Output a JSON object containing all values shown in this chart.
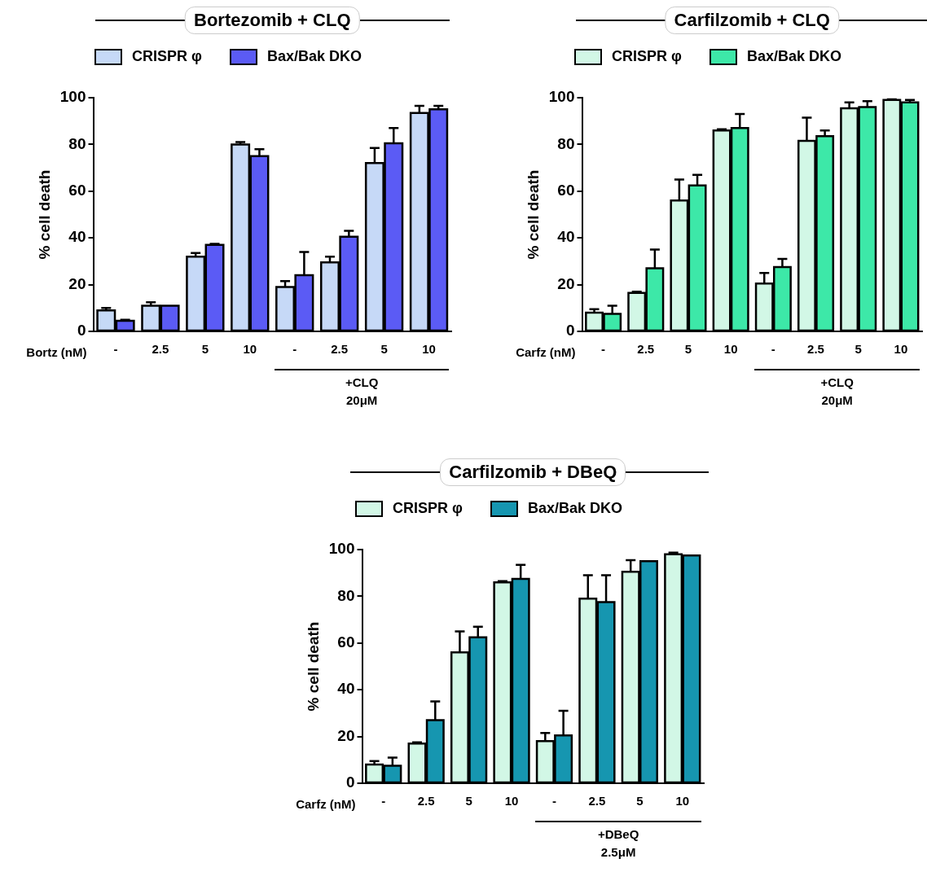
{
  "chart_data": [
    {
      "type": "bar",
      "title": "Bortezomib + CLQ",
      "xlabel": "Bortz (nM)",
      "ylabel": "% cell death",
      "categories": [
        "-",
        "2.5",
        "5",
        "10",
        "-",
        "2.5",
        "5",
        "10"
      ],
      "series": [
        {
          "name": "CRISPR φ",
          "color": "#c6d9f7",
          "values": [
            9,
            11,
            32,
            80,
            19,
            29.5,
            72,
            93.5
          ],
          "errors": [
            1,
            1.5,
            1.5,
            1,
            2.5,
            2.5,
            6.5,
            3
          ]
        },
        {
          "name": "Bax/Bak DKO",
          "color": "#5b5bf5",
          "values": [
            4.5,
            11,
            37,
            75,
            24,
            40.5,
            80.5,
            95
          ],
          "errors": [
            0.5,
            null,
            0.5,
            3,
            10,
            2.5,
            6.5,
            1.5
          ]
        }
      ],
      "ylim": [
        0,
        100
      ],
      "yticks": [
        0,
        20,
        40,
        60,
        80,
        100
      ],
      "legend": "top",
      "annotations": [
        "+CLQ",
        "20μM"
      ]
    },
    {
      "type": "bar",
      "title": "Carfilzomib + CLQ",
      "xlabel": "Carfz (nM)",
      "ylabel": "% cell death",
      "categories": [
        "-",
        "2.5",
        "5",
        "10",
        "-",
        "2.5",
        "5",
        "10"
      ],
      "series": [
        {
          "name": "CRISPR φ",
          "color": "#d2f7e6",
          "values": [
            8,
            16.5,
            56,
            86,
            20.5,
            81.5,
            95.5,
            99
          ],
          "errors": [
            1.5,
            0.5,
            9,
            0.5,
            4.5,
            10,
            2.5,
            0.3
          ]
        },
        {
          "name": "Bax/Bak DKO",
          "color": "#3de8a8",
          "values": [
            7.5,
            27,
            62.5,
            87,
            27.5,
            83.5,
            96,
            98
          ],
          "errors": [
            3.5,
            8,
            4.5,
            6,
            3.5,
            2.5,
            2.5,
            1
          ]
        }
      ],
      "ylim": [
        0,
        100
      ],
      "yticks": [
        0,
        20,
        40,
        60,
        80,
        100
      ],
      "legend": "top",
      "annotations": [
        "+CLQ",
        "20μM"
      ]
    },
    {
      "type": "bar",
      "title": "Carfilzomib + DBeQ",
      "xlabel": "Carfz (nM)",
      "ylabel": "% cell death",
      "categories": [
        "-",
        "2.5",
        "5",
        "10",
        "-",
        "2.5",
        "5",
        "10"
      ],
      "series": [
        {
          "name": "CRISPR φ",
          "color": "#d2f7e6",
          "values": [
            8,
            17,
            56,
            86,
            18,
            79,
            90.5,
            98
          ],
          "errors": [
            1.5,
            0.5,
            9,
            0.5,
            3.5,
            10,
            5,
            0.7
          ]
        },
        {
          "name": "Bax/Bak DKO",
          "color": "#1696b0",
          "values": [
            7.5,
            27,
            62.5,
            87.5,
            20.5,
            77.5,
            95,
            97.5
          ],
          "errors": [
            3.5,
            8,
            4.5,
            6,
            10.5,
            11.5,
            null,
            null
          ]
        }
      ],
      "ylim": [
        0,
        100
      ],
      "yticks": [
        0,
        20,
        40,
        60,
        80,
        100
      ],
      "legend": "top",
      "annotations": [
        "+DBeQ",
        "2.5μM"
      ]
    }
  ]
}
